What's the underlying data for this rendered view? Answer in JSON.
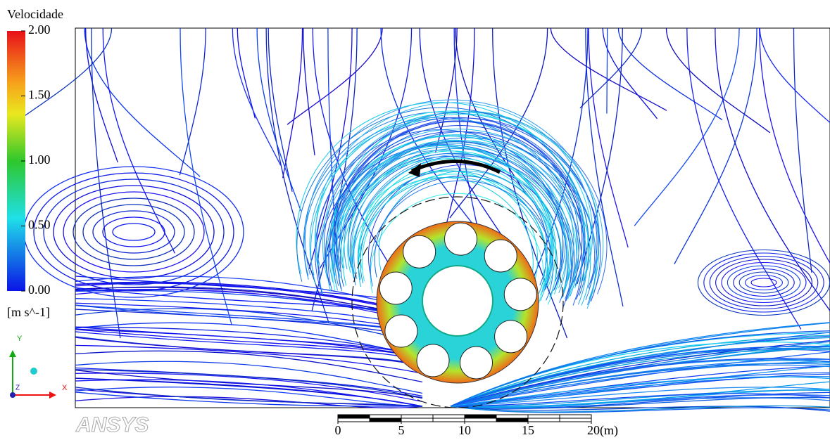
{
  "legend": {
    "title": "Velocidade",
    "ticks": [
      {
        "value": 2,
        "label": "2.00"
      },
      {
        "value": 1.5,
        "label": "1.50"
      },
      {
        "value": 1,
        "label": "1.00"
      },
      {
        "value": 0.5,
        "label": "0.50"
      },
      {
        "value": 0,
        "label": "0.00"
      }
    ],
    "unit": "[m s^-1]"
  },
  "axes": {
    "x": "X",
    "y": "Y",
    "z": "Z"
  },
  "logo": "ANSYS",
  "scalebar": {
    "ticks": [
      0,
      5,
      10,
      15,
      {
        "value": 20,
        "label": "20(m)"
      }
    ]
  }
}
